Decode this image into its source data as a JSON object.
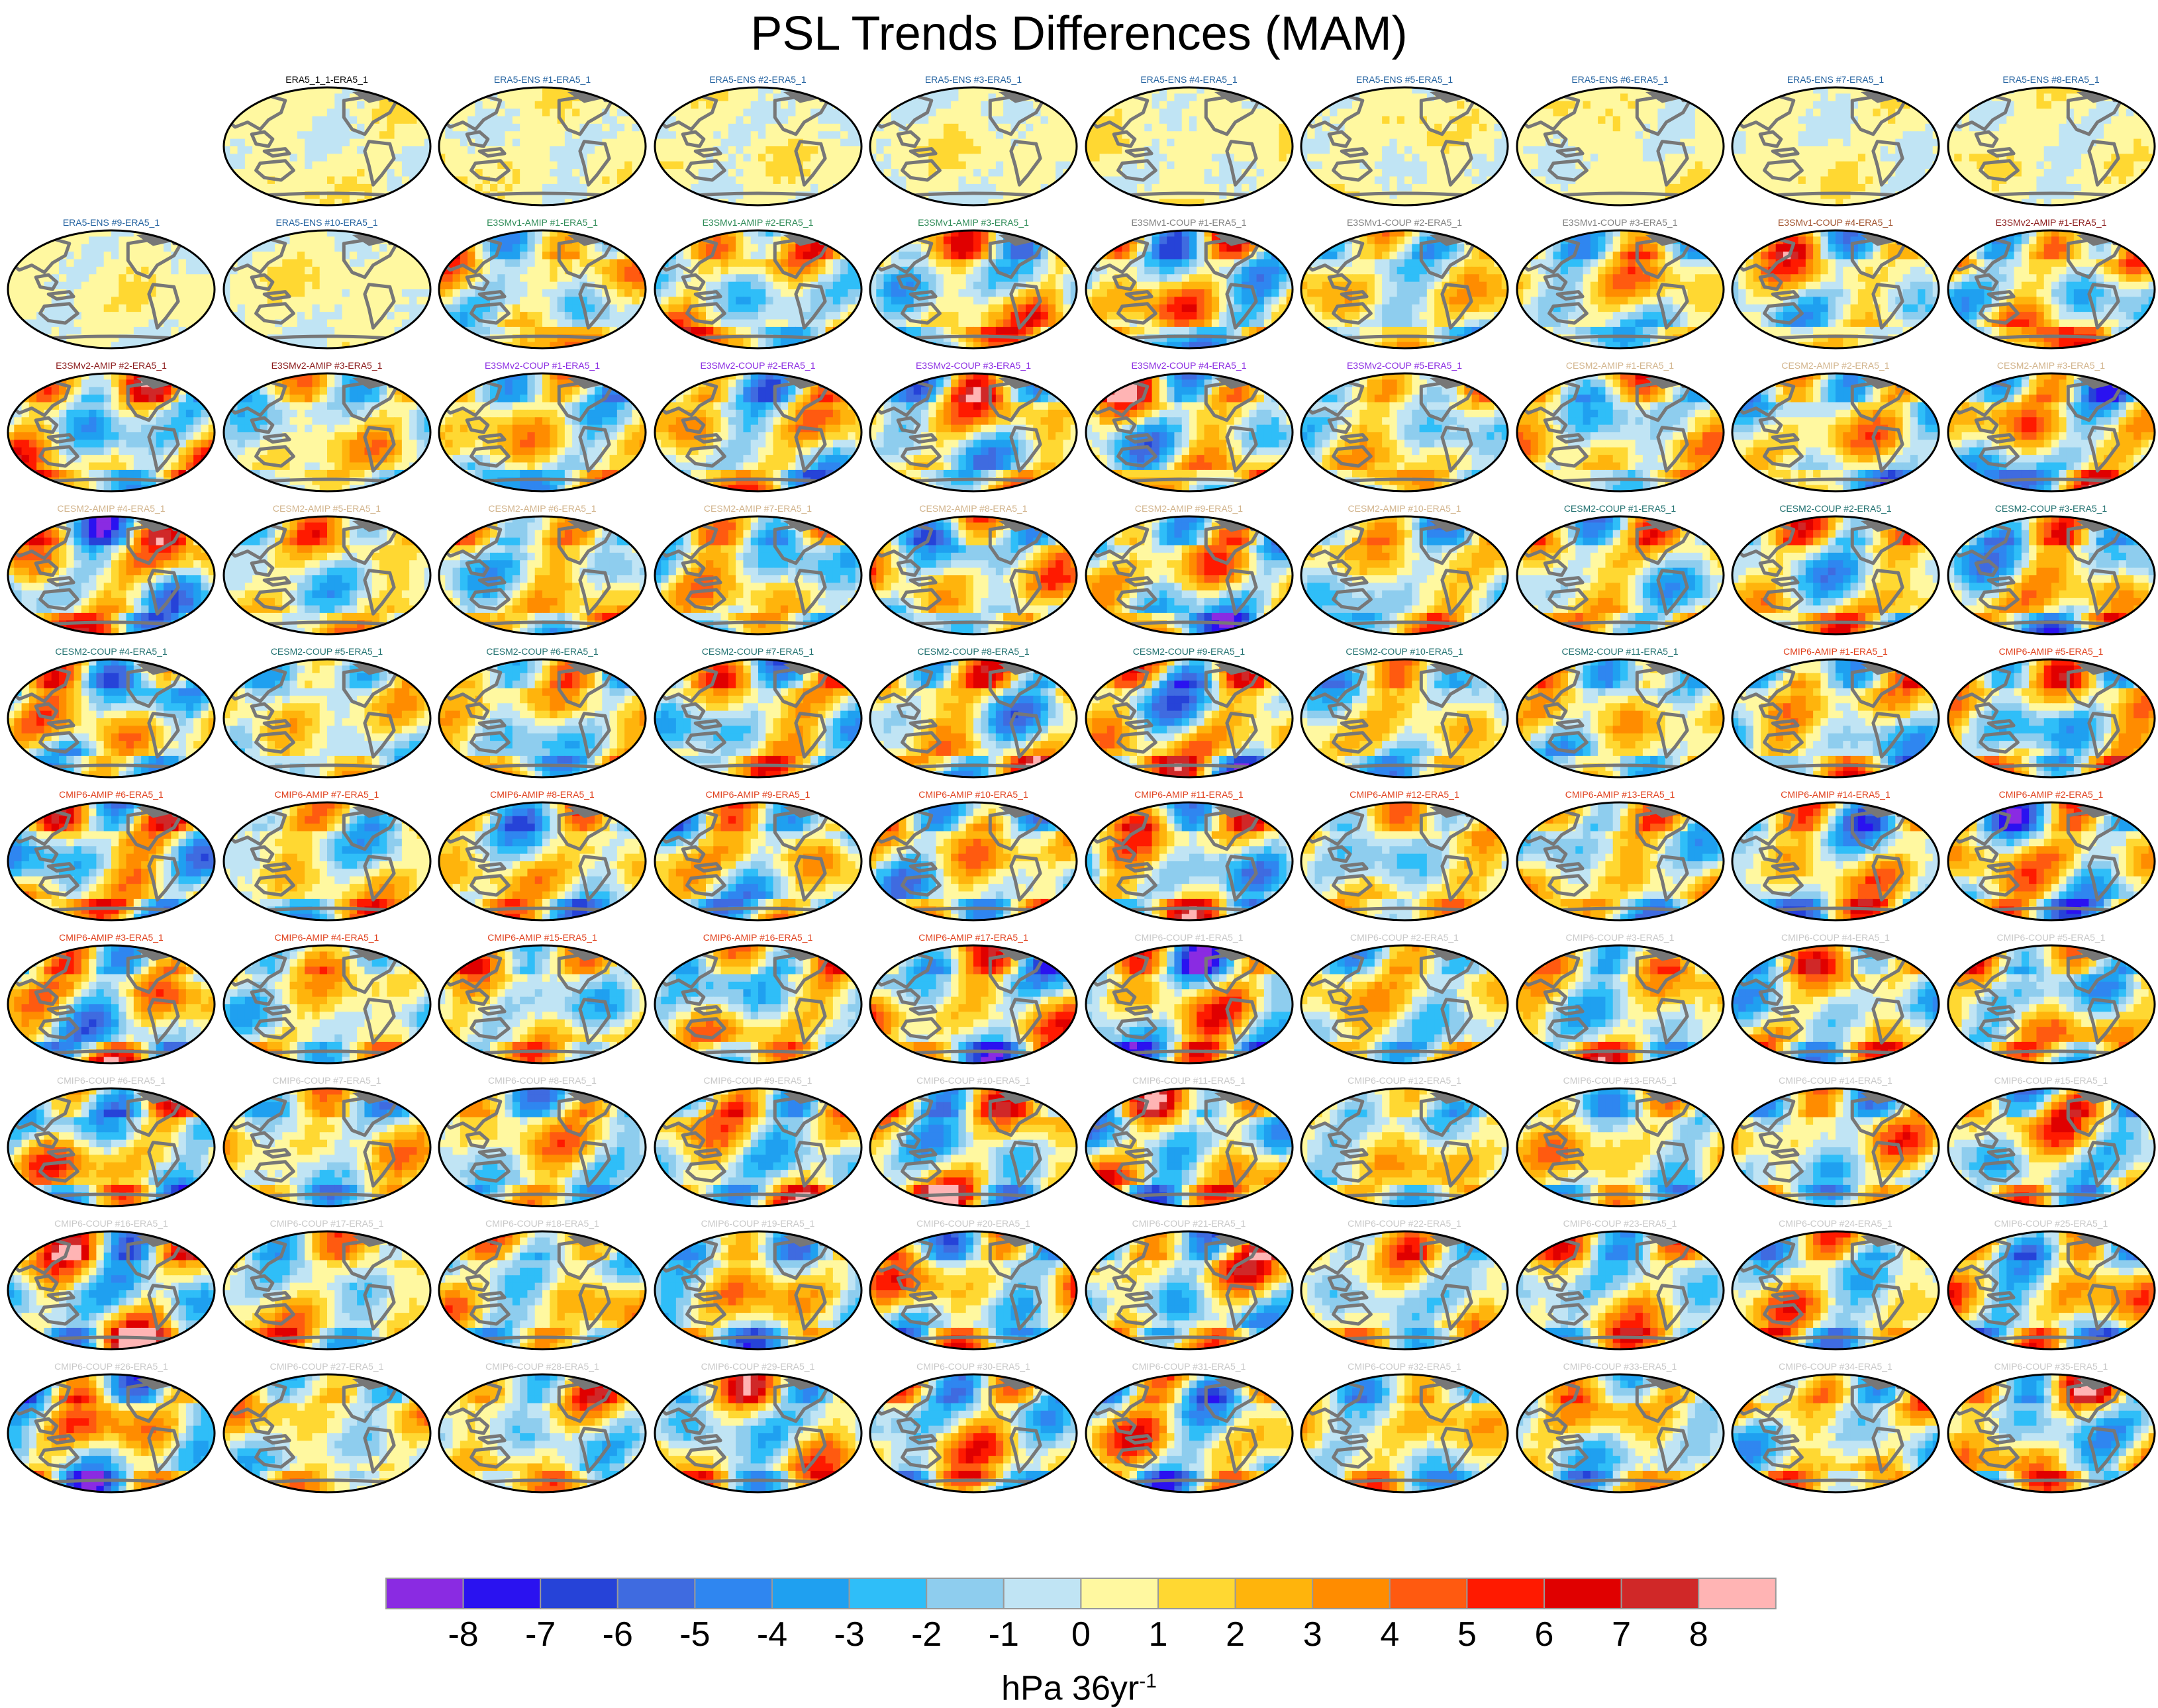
{
  "title": "PSL Trends Differences (MAM)",
  "units": {
    "base": "hPa 36yr",
    "exponent": "-1"
  },
  "chart_data": {
    "type": "heatmap",
    "layout": "small-multiples",
    "grid_cols": 10,
    "grid_rows": 10,
    "empty_cells": [
      0
    ],
    "panels": [
      {
        "name": "ERA5_1_1-ERA5_1",
        "group": "ERA5"
      },
      {
        "name": "ERA5-ENS   #1-ERA5_1",
        "group": "ERA5-ENS"
      },
      {
        "name": "ERA5-ENS   #2-ERA5_1",
        "group": "ERA5-ENS"
      },
      {
        "name": "ERA5-ENS   #3-ERA5_1",
        "group": "ERA5-ENS"
      },
      {
        "name": "ERA5-ENS   #4-ERA5_1",
        "group": "ERA5-ENS"
      },
      {
        "name": "ERA5-ENS   #5-ERA5_1",
        "group": "ERA5-ENS"
      },
      {
        "name": "ERA5-ENS   #6-ERA5_1",
        "group": "ERA5-ENS"
      },
      {
        "name": "ERA5-ENS   #7-ERA5_1",
        "group": "ERA5-ENS"
      },
      {
        "name": "ERA5-ENS   #8-ERA5_1",
        "group": "ERA5-ENS"
      },
      {
        "name": "ERA5-ENS   #9-ERA5_1",
        "group": "ERA5-ENS"
      },
      {
        "name": "ERA5-ENS   #10-ERA5_1",
        "group": "ERA5-ENS"
      },
      {
        "name": "E3SMv1-AMIP #1-ERA5_1",
        "group": "E3SMv1-AMIP"
      },
      {
        "name": "E3SMv1-AMIP #2-ERA5_1",
        "group": "E3SMv1-AMIP"
      },
      {
        "name": "E3SMv1-AMIP #3-ERA5_1",
        "group": "E3SMv1-AMIP"
      },
      {
        "name": "E3SMv1-COUP #1-ERA5_1",
        "group": "E3SMv1-COUP"
      },
      {
        "name": "E3SMv1-COUP #2-ERA5_1",
        "group": "E3SMv1-COUP"
      },
      {
        "name": "E3SMv1-COUP #3-ERA5_1",
        "group": "E3SMv1-COUP"
      },
      {
        "name": "E3SMv1-COUP #4-ERA5_1",
        "group": "E3SMv1-COUP4"
      },
      {
        "name": "E3SMv2-AMIP #1-ERA5_1",
        "group": "E3SMv2-AMIP"
      },
      {
        "name": "E3SMv2-AMIP #2-ERA5_1",
        "group": "E3SMv2-AMIP"
      },
      {
        "name": "E3SMv2-AMIP #3-ERA5_1",
        "group": "E3SMv2-AMIP"
      },
      {
        "name": "E3SMv2-COUP #1-ERA5_1",
        "group": "E3SMv2-COUP"
      },
      {
        "name": "E3SMv2-COUP #2-ERA5_1",
        "group": "E3SMv2-COUP"
      },
      {
        "name": "E3SMv2-COUP #3-ERA5_1",
        "group": "E3SMv2-COUP"
      },
      {
        "name": "E3SMv2-COUP #4-ERA5_1",
        "group": "E3SMv2-COUP"
      },
      {
        "name": "E3SMv2-COUP #5-ERA5_1",
        "group": "E3SMv2-COUP"
      },
      {
        "name": "CESM2-AMIP #1-ERA5_1",
        "group": "CESM2-AMIP"
      },
      {
        "name": "CESM2-AMIP #2-ERA5_1",
        "group": "CESM2-AMIP"
      },
      {
        "name": "CESM2-AMIP #3-ERA5_1",
        "group": "CESM2-AMIP"
      },
      {
        "name": "CESM2-AMIP #4-ERA5_1",
        "group": "CESM2-AMIP"
      },
      {
        "name": "CESM2-AMIP #5-ERA5_1",
        "group": "CESM2-AMIP"
      },
      {
        "name": "CESM2-AMIP #6-ERA5_1",
        "group": "CESM2-AMIP"
      },
      {
        "name": "CESM2-AMIP #7-ERA5_1",
        "group": "CESM2-AMIP"
      },
      {
        "name": "CESM2-AMIP #8-ERA5_1",
        "group": "CESM2-AMIP"
      },
      {
        "name": "CESM2-AMIP #9-ERA5_1",
        "group": "CESM2-AMIP"
      },
      {
        "name": "CESM2-AMIP #10-ERA5_1",
        "group": "CESM2-AMIP"
      },
      {
        "name": "CESM2-COUP #1-ERA5_1",
        "group": "CESM2-COUP"
      },
      {
        "name": "CESM2-COUP #2-ERA5_1",
        "group": "CESM2-COUP"
      },
      {
        "name": "CESM2-COUP #3-ERA5_1",
        "group": "CESM2-COUP"
      },
      {
        "name": "CESM2-COUP #4-ERA5_1",
        "group": "CESM2-COUP"
      },
      {
        "name": "CESM2-COUP #5-ERA5_1",
        "group": "CESM2-COUP"
      },
      {
        "name": "CESM2-COUP #6-ERA5_1",
        "group": "CESM2-COUP"
      },
      {
        "name": "CESM2-COUP #7-ERA5_1",
        "group": "CESM2-COUP"
      },
      {
        "name": "CESM2-COUP #8-ERA5_1",
        "group": "CESM2-COUP"
      },
      {
        "name": "CESM2-COUP #9-ERA5_1",
        "group": "CESM2-COUP"
      },
      {
        "name": "CESM2-COUP #10-ERA5_1",
        "group": "CESM2-COUP"
      },
      {
        "name": "CESM2-COUP #11-ERA5_1",
        "group": "CESM2-COUP"
      },
      {
        "name": "CMIP6-AMIP #1-ERA5_1",
        "group": "CMIP6-AMIP"
      },
      {
        "name": "CMIP6-AMIP #5-ERA5_1",
        "group": "CMIP6-AMIP"
      },
      {
        "name": "CMIP6-AMIP #6-ERA5_1",
        "group": "CMIP6-AMIP"
      },
      {
        "name": "CMIP6-AMIP #7-ERA5_1",
        "group": "CMIP6-AMIP"
      },
      {
        "name": "CMIP6-AMIP #8-ERA5_1",
        "group": "CMIP6-AMIP"
      },
      {
        "name": "CMIP6-AMIP #9-ERA5_1",
        "group": "CMIP6-AMIP"
      },
      {
        "name": "CMIP6-AMIP #10-ERA5_1",
        "group": "CMIP6-AMIP"
      },
      {
        "name": "CMIP6-AMIP #11-ERA5_1",
        "group": "CMIP6-AMIP"
      },
      {
        "name": "CMIP6-AMIP #12-ERA5_1",
        "group": "CMIP6-AMIP"
      },
      {
        "name": "CMIP6-AMIP #13-ERA5_1",
        "group": "CMIP6-AMIP"
      },
      {
        "name": "CMIP6-AMIP #14-ERA5_1",
        "group": "CMIP6-AMIP"
      },
      {
        "name": "CMIP6-AMIP #2-ERA5_1",
        "group": "CMIP6-AMIP"
      },
      {
        "name": "CMIP6-AMIP #3-ERA5_1",
        "group": "CMIP6-AMIP"
      },
      {
        "name": "CMIP6-AMIP #4-ERA5_1",
        "group": "CMIP6-AMIP"
      },
      {
        "name": "CMIP6-AMIP #15-ERA5_1",
        "group": "CMIP6-AMIP"
      },
      {
        "name": "CMIP6-AMIP #16-ERA5_1",
        "group": "CMIP6-AMIP"
      },
      {
        "name": "CMIP6-AMIP #17-ERA5_1",
        "group": "CMIP6-AMIP"
      },
      {
        "name": "CMIP6-COUP #1-ERA5_1",
        "group": "CMIP6-COUP"
      },
      {
        "name": "CMIP6-COUP #2-ERA5_1",
        "group": "CMIP6-COUP"
      },
      {
        "name": "CMIP6-COUP #3-ERA5_1",
        "group": "CMIP6-COUP"
      },
      {
        "name": "CMIP6-COUP #4-ERA5_1",
        "group": "CMIP6-COUP"
      },
      {
        "name": "CMIP6-COUP #5-ERA5_1",
        "group": "CMIP6-COUP"
      },
      {
        "name": "CMIP6-COUP #6-ERA5_1",
        "group": "CMIP6-COUP"
      },
      {
        "name": "CMIP6-COUP #7-ERA5_1",
        "group": "CMIP6-COUP"
      },
      {
        "name": "CMIP6-COUP #8-ERA5_1",
        "group": "CMIP6-COUP"
      },
      {
        "name": "CMIP6-COUP #9-ERA5_1",
        "group": "CMIP6-COUP"
      },
      {
        "name": "CMIP6-COUP #10-ERA5_1",
        "group": "CMIP6-COUP"
      },
      {
        "name": "CMIP6-COUP #11-ERA5_1",
        "group": "CMIP6-COUP"
      },
      {
        "name": "CMIP6-COUP #12-ERA5_1",
        "group": "CMIP6-COUP"
      },
      {
        "name": "CMIP6-COUP #13-ERA5_1",
        "group": "CMIP6-COUP"
      },
      {
        "name": "CMIP6-COUP #14-ERA5_1",
        "group": "CMIP6-COUP"
      },
      {
        "name": "CMIP6-COUP #15-ERA5_1",
        "group": "CMIP6-COUP"
      },
      {
        "name": "CMIP6-COUP #16-ERA5_1",
        "group": "CMIP6-COUP"
      },
      {
        "name": "CMIP6-COUP #17-ERA5_1",
        "group": "CMIP6-COUP"
      },
      {
        "name": "CMIP6-COUP #18-ERA5_1",
        "group": "CMIP6-COUP"
      },
      {
        "name": "CMIP6-COUP #19-ERA5_1",
        "group": "CMIP6-COUP"
      },
      {
        "name": "CMIP6-COUP #20-ERA5_1",
        "group": "CMIP6-COUP"
      },
      {
        "name": "CMIP6-COUP #21-ERA5_1",
        "group": "CMIP6-COUP"
      },
      {
        "name": "CMIP6-COUP #22-ERA5_1",
        "group": "CMIP6-COUP"
      },
      {
        "name": "CMIP6-COUP #23-ERA5_1",
        "group": "CMIP6-COUP"
      },
      {
        "name": "CMIP6-COUP #24-ERA5_1",
        "group": "CMIP6-COUP"
      },
      {
        "name": "CMIP6-COUP #25-ERA5_1",
        "group": "CMIP6-COUP"
      },
      {
        "name": "CMIP6-COUP #26-ERA5_1",
        "group": "CMIP6-COUP"
      },
      {
        "name": "CMIP6-COUP #27-ERA5_1",
        "group": "CMIP6-COUP"
      },
      {
        "name": "CMIP6-COUP #28-ERA5_1",
        "group": "CMIP6-COUP"
      },
      {
        "name": "CMIP6-COUP #29-ERA5_1",
        "group": "CMIP6-COUP"
      },
      {
        "name": "CMIP6-COUP #30-ERA5_1",
        "group": "CMIP6-COUP"
      },
      {
        "name": "CMIP6-COUP #31-ERA5_1",
        "group": "CMIP6-COUP"
      },
      {
        "name": "CMIP6-COUP #32-ERA5_1",
        "group": "CMIP6-COUP"
      },
      {
        "name": "CMIP6-COUP #33-ERA5_1",
        "group": "CMIP6-COUP"
      },
      {
        "name": "CMIP6-COUP #34-ERA5_1",
        "group": "CMIP6-COUP"
      },
      {
        "name": "CMIP6-COUP #35-ERA5_1",
        "group": "CMIP6-COUP"
      }
    ],
    "group_title_colors": {
      "ERA5": "#000000",
      "ERA5-ENS": "#1f5f9e",
      "E3SMv1-AMIP": "#2e8b57",
      "E3SMv1-COUP": "#808080",
      "E3SMv1-COUP4": "#a0522d",
      "E3SMv2-AMIP": "#8b1a1a",
      "E3SMv2-COUP": "#8a2be2",
      "CESM2-AMIP": "#d2b48c",
      "CESM2-COUP": "#20706f",
      "CMIP6-AMIP": "#e0401c",
      "CMIP6-COUP": "#c8c8c8"
    },
    "colorbar": {
      "labels": [
        "-8",
        "-7",
        "-6",
        "-5",
        "-4",
        "-3",
        "-2",
        "-1",
        "0",
        "1",
        "2",
        "3",
        "4",
        "5",
        "6",
        "7",
        "8"
      ],
      "colors": [
        "#8a2be2",
        "#2a12f0",
        "#2643d8",
        "#3f6be0",
        "#2f86f0",
        "#1fa0f0",
        "#2fbef8",
        "#8ecdee",
        "#c0e4f4",
        "#fff8a0",
        "#ffd832",
        "#ffb40c",
        "#ff8c00",
        "#ff5a10",
        "#ff1a00",
        "#e00000",
        "#d02828",
        "#ffb4b4"
      ]
    },
    "land_color": "#777777",
    "map_projection": "robinson-pacific-centered"
  }
}
